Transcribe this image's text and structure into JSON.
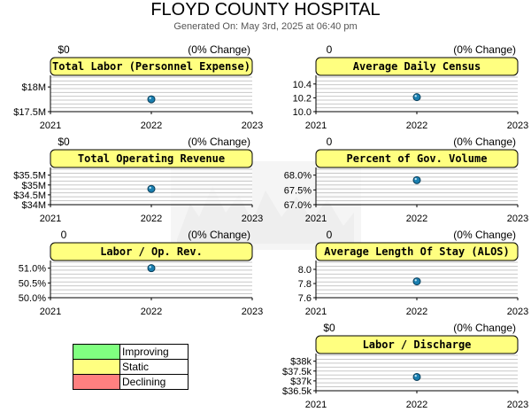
{
  "page": {
    "title": "FLOYD COUNTY HOSPITAL",
    "subtitle": "Generated On: May 3rd, 2025 at 06:40 pm"
  },
  "legend": [
    {
      "label": "Improving",
      "color": "#80ff80"
    },
    {
      "label": "Static",
      "color": "#ffff80"
    },
    {
      "label": "Declining",
      "color": "#ff8080"
    }
  ],
  "chart_data": [
    {
      "type": "scatter",
      "title": "Total Labor (Personnel Expense)",
      "change_value": "$0",
      "change_pct": "(0% Change)",
      "status": "Static",
      "x_ticks": [
        "2021",
        "2022",
        "2023"
      ],
      "xlim": [
        2021,
        2023
      ],
      "y_ticks": [
        {
          "value": 18000000,
          "label": "$18M"
        },
        {
          "value": 17500000,
          "label": "$17.5M"
        }
      ],
      "ylim": [
        17500000,
        18200000
      ],
      "points": [
        {
          "x": 2022,
          "y": 17750000
        }
      ],
      "grid": true
    },
    {
      "type": "scatter",
      "title": "Average Daily Census",
      "change_value": "0",
      "change_pct": "(0% Change)",
      "status": "Static",
      "x_ticks": [
        "2021",
        "2022",
        "2023"
      ],
      "xlim": [
        2021,
        2023
      ],
      "y_ticks": [
        {
          "value": 10.4,
          "label": "10.4"
        },
        {
          "value": 10.2,
          "label": "10.2"
        },
        {
          "value": 10.0,
          "label": "10.0"
        }
      ],
      "ylim": [
        10.0,
        10.5
      ],
      "points": [
        {
          "x": 2022,
          "y": 10.21
        }
      ],
      "grid": true
    },
    {
      "type": "scatter",
      "title": "Total Operating Revenue",
      "change_value": "$0",
      "change_pct": "(0% Change)",
      "status": "Static",
      "x_ticks": [
        "2021",
        "2022",
        "2023"
      ],
      "xlim": [
        2021,
        2023
      ],
      "y_ticks": [
        {
          "value": 35500000,
          "label": "$35.5M"
        },
        {
          "value": 35000000,
          "label": "$35M"
        },
        {
          "value": 34500000,
          "label": "$34.5M"
        },
        {
          "value": 34000000,
          "label": "$34M"
        }
      ],
      "ylim": [
        34000000,
        35800000
      ],
      "points": [
        {
          "x": 2022,
          "y": 34800000
        }
      ],
      "grid": true
    },
    {
      "type": "scatter",
      "title": "Percent of Gov. Volume",
      "change_value": "0",
      "change_pct": "(0% Change)",
      "status": "Static",
      "x_ticks": [
        "2021",
        "2022",
        "2023"
      ],
      "xlim": [
        2021,
        2023
      ],
      "y_ticks": [
        {
          "value": 68.0,
          "label": "68.0%"
        },
        {
          "value": 67.5,
          "label": "67.5%"
        },
        {
          "value": 67.0,
          "label": "67.0%"
        }
      ],
      "ylim": [
        67.0,
        68.2
      ],
      "points": [
        {
          "x": 2022,
          "y": 67.83
        }
      ],
      "grid": true
    },
    {
      "type": "scatter",
      "title": "Labor / Op. Rev.",
      "change_value": "0",
      "change_pct": "(0% Change)",
      "status": "Static",
      "x_ticks": [
        "2021",
        "2022",
        "2023"
      ],
      "xlim": [
        2021,
        2023
      ],
      "y_ticks": [
        {
          "value": 51.0,
          "label": "51.0%"
        },
        {
          "value": 50.5,
          "label": "50.5%"
        },
        {
          "value": 50.0,
          "label": "50.0%"
        }
      ],
      "ylim": [
        50.0,
        51.2
      ],
      "points": [
        {
          "x": 2022,
          "y": 51.0
        }
      ],
      "grid": true
    },
    {
      "type": "scatter",
      "title": "Average Length Of Stay (ALOS)",
      "change_value": "0",
      "change_pct": "(0% Change)",
      "status": "Static",
      "x_ticks": [
        "2021",
        "2022",
        "2023"
      ],
      "xlim": [
        2021,
        2023
      ],
      "y_ticks": [
        {
          "value": 8.0,
          "label": "8.0"
        },
        {
          "value": 7.8,
          "label": "7.8"
        },
        {
          "value": 7.6,
          "label": "7.6"
        }
      ],
      "ylim": [
        7.6,
        8.1
      ],
      "points": [
        {
          "x": 2022,
          "y": 7.83
        }
      ],
      "grid": true
    },
    {
      "type": "scatter",
      "title": "Labor / Discharge",
      "change_value": "$0",
      "change_pct": "(0% Change)",
      "status": "Static",
      "x_ticks": [
        "2021",
        "2022",
        "2023"
      ],
      "xlim": [
        2021,
        2023
      ],
      "y_ticks": [
        {
          "value": 38000,
          "label": "$38k"
        },
        {
          "value": 37500,
          "label": "$37.5k"
        },
        {
          "value": 37000,
          "label": "$37k"
        },
        {
          "value": 36500,
          "label": "$36.5k"
        }
      ],
      "ylim": [
        36500,
        38300
      ],
      "points": [
        {
          "x": 2022,
          "y": 37200
        }
      ],
      "grid": true
    }
  ]
}
